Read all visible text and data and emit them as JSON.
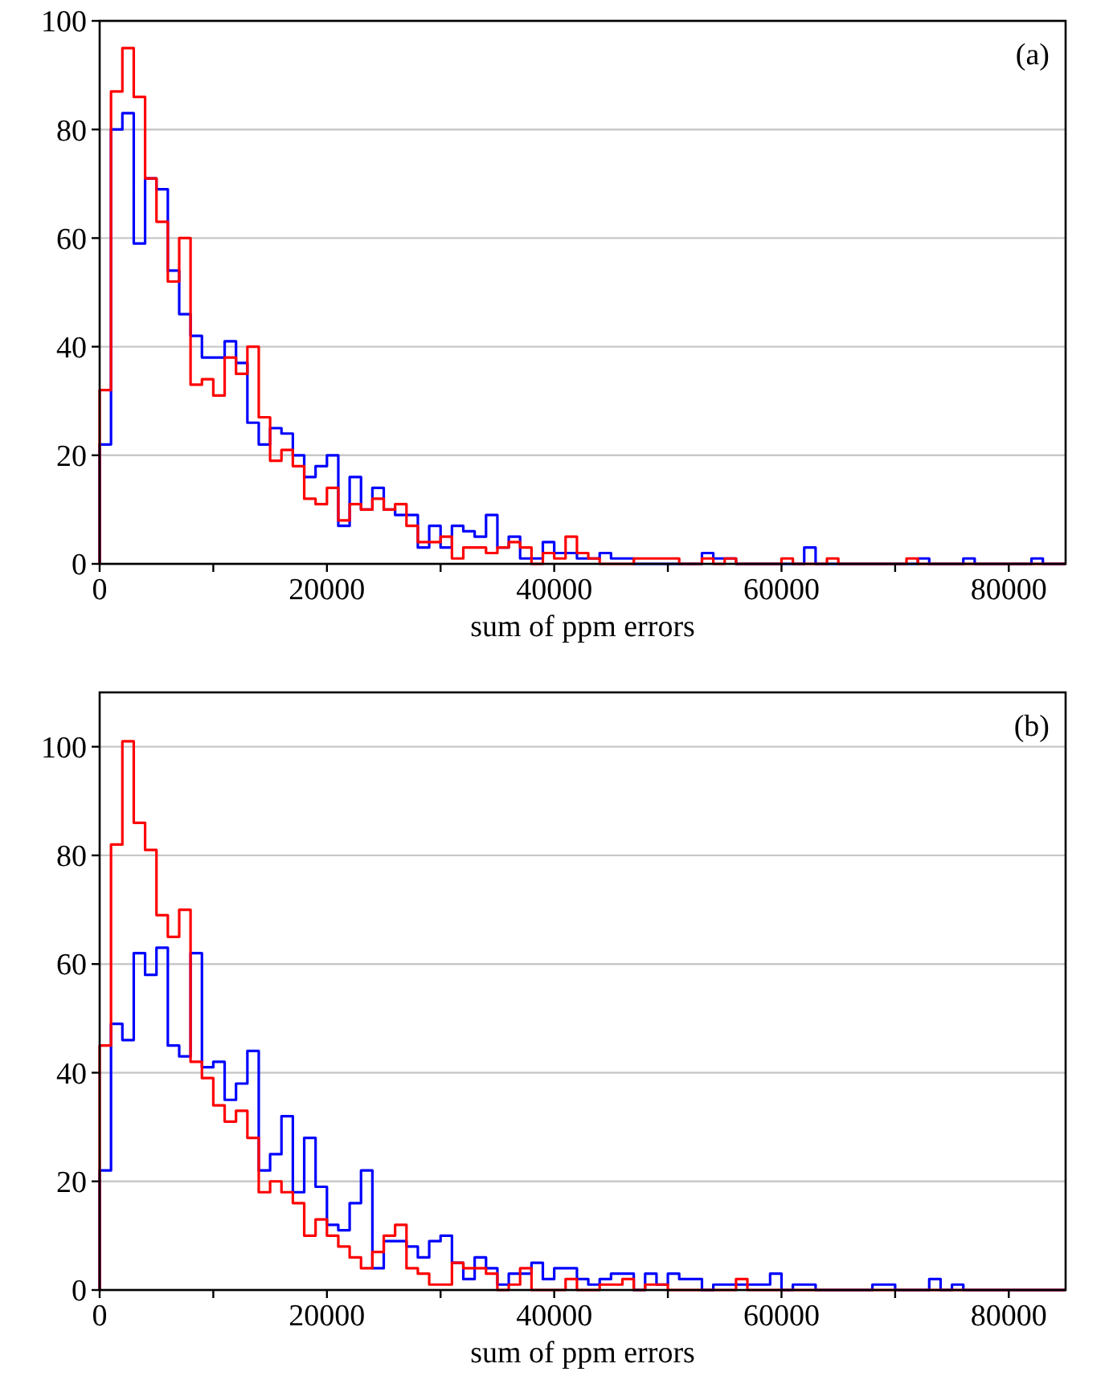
{
  "chart_data": [
    {
      "type": "histogram",
      "xlabel": "sum of ppm errors",
      "annotations": [
        "(a)"
      ],
      "grid": "y",
      "xlim": [
        0,
        85000
      ],
      "ylim": [
        0,
        100
      ],
      "xticks": [
        0,
        {
          "value": 10000,
          "label": null
        },
        20000,
        {
          "value": 30000,
          "label": null
        },
        40000,
        {
          "value": 50000,
          "label": null
        },
        60000,
        {
          "value": 70000,
          "label": null
        },
        80000
      ],
      "yticks": [
        0,
        20,
        40,
        60,
        80,
        100
      ],
      "bins": [
        0,
        1000,
        2000,
        3000,
        4000,
        5000,
        6000,
        7000,
        8000,
        9000,
        10000,
        11000,
        12000,
        13000,
        14000,
        15000,
        16000,
        17000,
        18000,
        19000,
        20000,
        21000,
        22000,
        23000,
        24000,
        25000,
        26000,
        27000,
        28000,
        29000,
        30000,
        31000,
        32000,
        33000,
        34000,
        35000,
        36000,
        37000,
        38000,
        39000,
        40000,
        41000,
        42000,
        43000,
        44000,
        45000,
        46000,
        47000,
        48000,
        49000,
        50000,
        51000,
        52000,
        53000,
        54000,
        55000,
        56000,
        57000,
        58000,
        59000,
        60000,
        61000,
        62000,
        63000,
        64000,
        65000,
        66000,
        67000,
        68000,
        69000,
        70000,
        71000,
        72000,
        73000,
        74000,
        75000,
        76000,
        77000,
        78000,
        79000,
        80000,
        81000,
        82000,
        83000,
        84000,
        85000
      ],
      "series": [
        {
          "color": "#0000ff",
          "values": [
            22,
            80,
            83,
            59,
            71,
            69,
            54,
            46,
            42,
            38,
            38,
            41,
            37,
            26,
            22,
            25,
            24,
            20,
            16,
            18,
            20,
            7,
            16,
            10,
            14,
            10,
            9,
            9,
            3,
            7,
            3,
            7,
            6,
            5,
            9,
            3,
            5,
            1,
            1,
            4,
            2,
            2,
            1,
            1,
            2,
            1,
            1,
            0,
            0,
            0,
            0,
            0,
            0,
            2,
            1,
            1,
            0,
            0,
            0,
            0,
            0,
            0,
            3,
            0,
            0,
            0,
            0,
            0,
            0,
            0,
            0,
            0,
            1,
            0,
            0,
            0,
            1,
            0,
            0,
            0,
            0,
            0,
            1,
            0,
            0
          ]
        },
        {
          "color": "#ff0000",
          "values": [
            32,
            87,
            95,
            86,
            71,
            63,
            52,
            60,
            33,
            34,
            31,
            38,
            35,
            40,
            27,
            19,
            21,
            18,
            12,
            11,
            14,
            8,
            11,
            10,
            12,
            10,
            11,
            7,
            4,
            4,
            5,
            1,
            3,
            3,
            2,
            3,
            4,
            3,
            0,
            2,
            1,
            5,
            2,
            1,
            0,
            0,
            0,
            1,
            1,
            1,
            1,
            0,
            0,
            1,
            0,
            1,
            0,
            0,
            0,
            0,
            1,
            0,
            0,
            0,
            1,
            0,
            0,
            0,
            0,
            0,
            0,
            1,
            0,
            0,
            0,
            0,
            0,
            0,
            0,
            0,
            0,
            0,
            0,
            0,
            0
          ]
        }
      ]
    },
    {
      "type": "histogram",
      "xlabel": "sum of ppm errors",
      "annotations": [
        "(b)"
      ],
      "grid": "y",
      "xlim": [
        0,
        85000
      ],
      "ylim": [
        0,
        110
      ],
      "xticks": [
        0,
        {
          "value": 10000,
          "label": null
        },
        20000,
        {
          "value": 30000,
          "label": null
        },
        40000,
        {
          "value": 50000,
          "label": null
        },
        60000,
        {
          "value": 70000,
          "label": null
        },
        80000
      ],
      "yticks": [
        0,
        20,
        40,
        60,
        80,
        100
      ],
      "bins": [
        0,
        1000,
        2000,
        3000,
        4000,
        5000,
        6000,
        7000,
        8000,
        9000,
        10000,
        11000,
        12000,
        13000,
        14000,
        15000,
        16000,
        17000,
        18000,
        19000,
        20000,
        21000,
        22000,
        23000,
        24000,
        25000,
        26000,
        27000,
        28000,
        29000,
        30000,
        31000,
        32000,
        33000,
        34000,
        35000,
        36000,
        37000,
        38000,
        39000,
        40000,
        41000,
        42000,
        43000,
        44000,
        45000,
        46000,
        47000,
        48000,
        49000,
        50000,
        51000,
        52000,
        53000,
        54000,
        55000,
        56000,
        57000,
        58000,
        59000,
        60000,
        61000,
        62000,
        63000,
        64000,
        65000,
        66000,
        67000,
        68000,
        69000,
        70000,
        71000,
        72000,
        73000,
        74000,
        75000,
        76000,
        77000,
        78000,
        79000,
        80000,
        81000,
        82000,
        83000,
        84000,
        85000
      ],
      "series": [
        {
          "color": "#0000ff",
          "values": [
            22,
            49,
            46,
            62,
            58,
            63,
            45,
            43,
            62,
            41,
            42,
            35,
            38,
            44,
            22,
            25,
            32,
            18,
            28,
            19,
            12,
            11,
            16,
            22,
            4,
            9,
            9,
            8,
            6,
            9,
            10,
            5,
            2,
            6,
            4,
            1,
            3,
            3,
            5,
            2,
            4,
            4,
            2,
            1,
            2,
            3,
            3,
            0,
            3,
            1,
            3,
            2,
            2,
            0,
            1,
            1,
            1,
            1,
            1,
            3,
            0,
            1,
            1,
            0,
            0,
            0,
            0,
            0,
            1,
            1,
            0,
            0,
            0,
            2,
            0,
            1,
            0,
            0,
            0,
            0,
            0,
            0,
            0,
            0,
            0
          ]
        },
        {
          "color": "#ff0000",
          "values": [
            45,
            82,
            101,
            86,
            81,
            69,
            65,
            70,
            42,
            39,
            34,
            31,
            33,
            28,
            18,
            20,
            18,
            16,
            10,
            13,
            10,
            8,
            6,
            4,
            7,
            10,
            12,
            4,
            3,
            1,
            1,
            5,
            4,
            4,
            3,
            0,
            1,
            4,
            0,
            0,
            0,
            2,
            0,
            0,
            1,
            1,
            2,
            0,
            1,
            1,
            0,
            0,
            0,
            0,
            0,
            0,
            2,
            0,
            0,
            0,
            0,
            0,
            0,
            0,
            0,
            0,
            0,
            0,
            0,
            0,
            0,
            0,
            0,
            0,
            0,
            0,
            0,
            0,
            0,
            0,
            0,
            0,
            0,
            0,
            0
          ]
        }
      ]
    }
  ]
}
